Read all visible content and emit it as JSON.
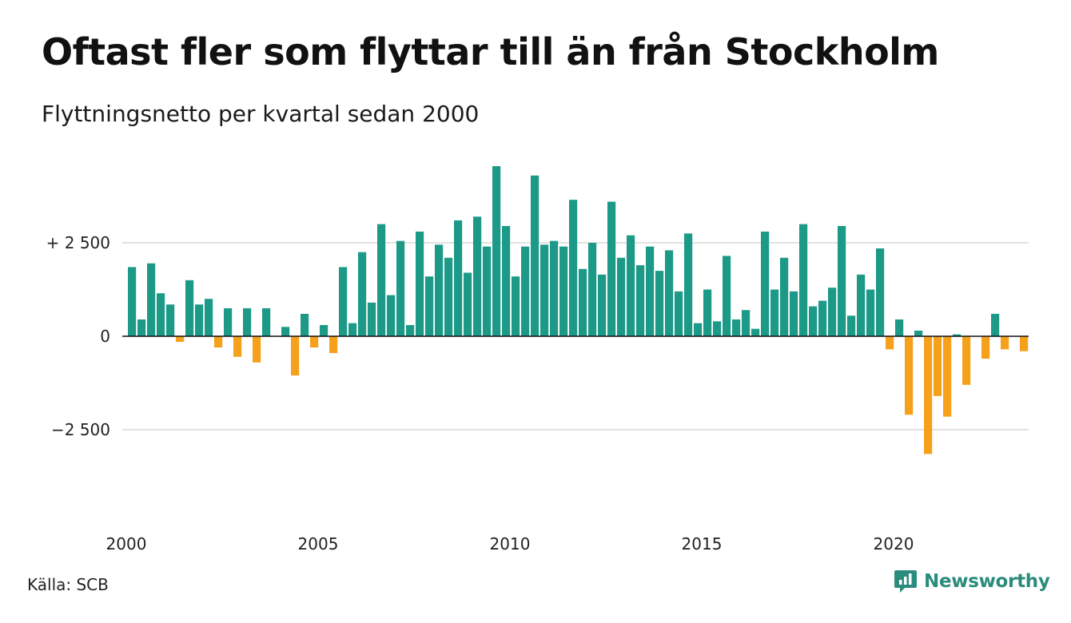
{
  "title": "Oftast fler som flyttar till än från Stockholm",
  "subtitle": "Flyttningsnetto per kvartal sedan 2000",
  "source": "Källa: SCB",
  "brand": "Newsworthy",
  "colors": {
    "positive": "#1c9a87",
    "negative": "#f5a11c",
    "grid": "#d9d9d9",
    "zero": "#111111",
    "brand": "#2a8c7c"
  },
  "chart_data": {
    "type": "bar",
    "title": "Oftast fler som flyttar till än från Stockholm",
    "subtitle": "Flyttningsnetto per kvartal sedan 2000",
    "xlabel": "",
    "ylabel": "",
    "ylim": [
      -4500,
      4700
    ],
    "start": "2000Q1",
    "y_ticks": [
      {
        "value": 2500,
        "label": "+ 2 500"
      },
      {
        "value": 0,
        "label": "0"
      },
      {
        "value": -2500,
        "label": "−2 500"
      }
    ],
    "x_ticks": [
      {
        "year": 2000,
        "label": "2000"
      },
      {
        "year": 2005,
        "label": "2005"
      },
      {
        "year": 2010,
        "label": "2010"
      },
      {
        "year": 2015,
        "label": "2015"
      },
      {
        "year": 2020,
        "label": "2020"
      }
    ],
    "grid": true,
    "legend": "none",
    "values": [
      1850,
      450,
      1950,
      1150,
      850,
      -150,
      1500,
      850,
      1000,
      -300,
      750,
      -550,
      750,
      -700,
      750,
      0,
      250,
      -1050,
      600,
      -300,
      300,
      -450,
      1850,
      350,
      2250,
      900,
      3000,
      1100,
      2550,
      300,
      2800,
      1600,
      2450,
      2100,
      3100,
      1700,
      3200,
      2400,
      4550,
      2950,
      1600,
      2400,
      4300,
      2450,
      2550,
      2400,
      3650,
      1800,
      2500,
      1650,
      3600,
      2100,
      2700,
      1900,
      2400,
      1750,
      2300,
      1200,
      2750,
      350,
      1250,
      400,
      2150,
      450,
      700,
      200,
      2800,
      1250,
      2100,
      1200,
      3000,
      800,
      950,
      1300,
      2950,
      550,
      1650,
      1250,
      2350,
      -350,
      450,
      -2100,
      150,
      -3150,
      -1600,
      -2150,
      50,
      -1300,
      0,
      -600,
      600,
      -350,
      0,
      -400
    ]
  }
}
